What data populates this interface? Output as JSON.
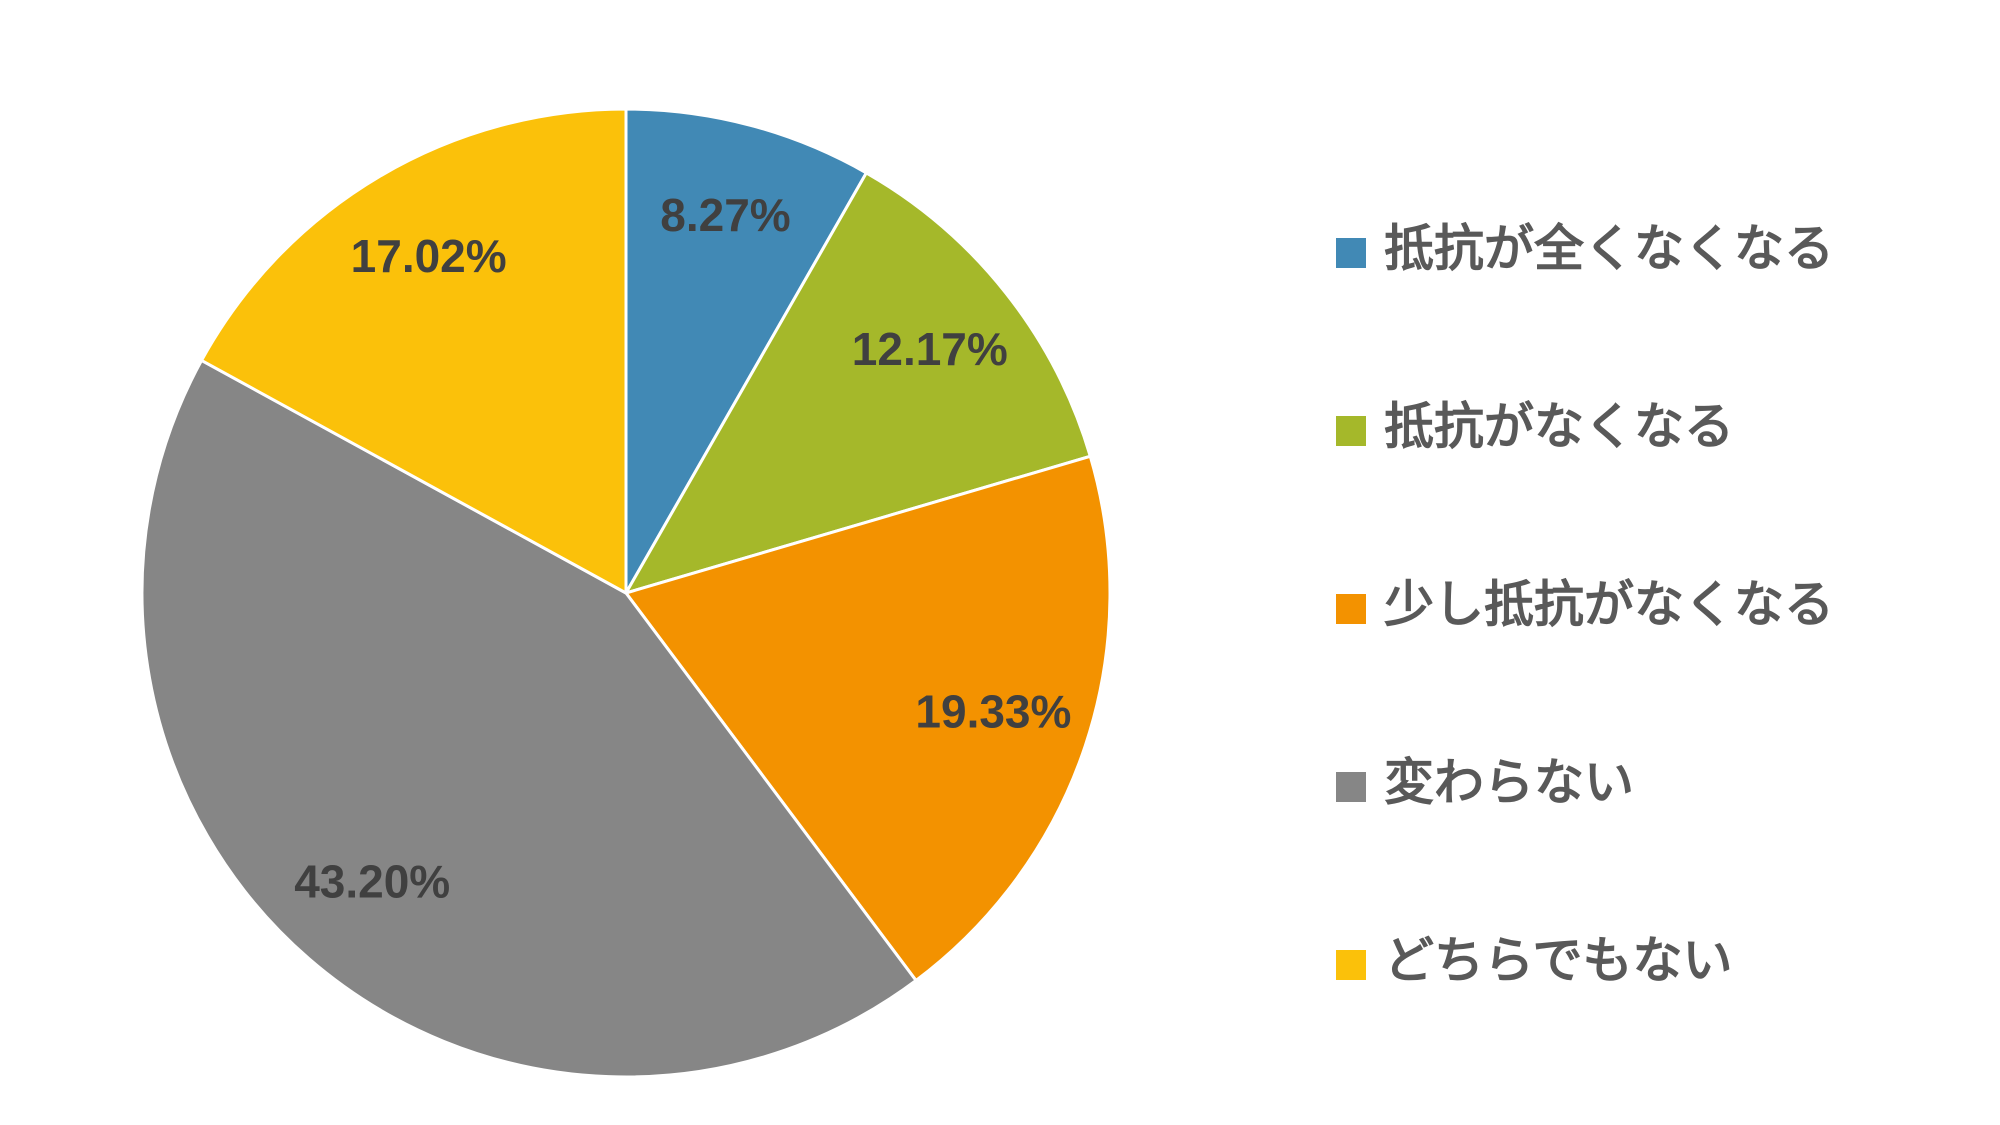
{
  "chart_data": {
    "type": "pie",
    "categories": [
      "抵抗が全くなくなる",
      "抵抗がなくなる",
      "少し抵抗がなくなる",
      "変わらない",
      "どちらでもない"
    ],
    "values": [
      8.27,
      12.17,
      19.33,
      43.2,
      17.02
    ],
    "value_labels": [
      "8.27%",
      "12.17%",
      "19.33%",
      "43.20%",
      "17.02%"
    ],
    "colors": [
      "#4189b5",
      "#a5b82a",
      "#f39200",
      "#868686",
      "#fbc10a"
    ],
    "legend": "right"
  }
}
